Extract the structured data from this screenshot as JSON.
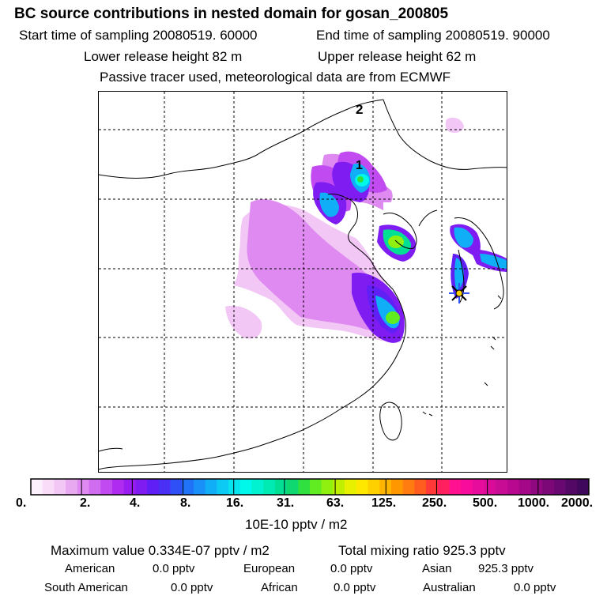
{
  "title": "BC  source contributions in nested domain for gosan_200805",
  "sampling": {
    "start": "Start time of sampling 20080519. 60000",
    "end": "End time of sampling 20080519. 90000"
  },
  "release": {
    "lower": "Lower release height   82 m",
    "upper": "Upper release height   62 m"
  },
  "note": "Passive tracer used, meteorological data are from ECMWF",
  "map": {
    "labels": [
      "2",
      "1"
    ],
    "receptor_icon": "star-icon"
  },
  "colorbar": {
    "ticks": [
      "0.",
      "2.",
      "4.",
      "8.",
      "16.",
      "31.",
      "63.",
      "125.",
      "250.",
      "500.",
      "1000.",
      "2000."
    ],
    "units": "10E-10 pptv / m2",
    "colors": [
      "#fdf0fd",
      "#f8dcf8",
      "#f2c6f5",
      "#e9a9f1",
      "#de8af0",
      "#d06cef",
      "#c14bf0",
      "#b02bf0",
      "#9a1cf2",
      "#7e1cf2",
      "#5f1ff5",
      "#4a30f5",
      "#3050f7",
      "#2072f7",
      "#1890f7",
      "#10aef7",
      "#0ccaf4",
      "#06e4ee",
      "#00f8ea",
      "#00f2d0",
      "#00eab4",
      "#00e094",
      "#10d870",
      "#30e040",
      "#60ec20",
      "#90f010",
      "#c0f000",
      "#e8f000",
      "#ffe800",
      "#ffd000",
      "#ffb400",
      "#ff9800",
      "#ff7c10",
      "#ff5c20",
      "#ff3838",
      "#ff2060",
      "#ff1090",
      "#f80c9c",
      "#e80c9c",
      "#d80c98",
      "#c80c94",
      "#b80890",
      "#a40888",
      "#900880",
      "#7c0878",
      "#680870",
      "#540866",
      "#40085c"
    ]
  },
  "stats": {
    "max_value": "Maximum value  0.334E-07 pptv / m2",
    "total": "Total mixing ratio      925.3 pptv"
  },
  "regions": [
    {
      "name": "American",
      "value": "0.0 pptv"
    },
    {
      "name": "European",
      "value": "0.0 pptv"
    },
    {
      "name": "Asian",
      "value": "925.3 pptv"
    },
    {
      "name": "South American",
      "value": "0.0 pptv"
    },
    {
      "name": "African",
      "value": "0.0 pptv"
    },
    {
      "name": "Australian",
      "value": "0.0 pptv"
    }
  ]
}
